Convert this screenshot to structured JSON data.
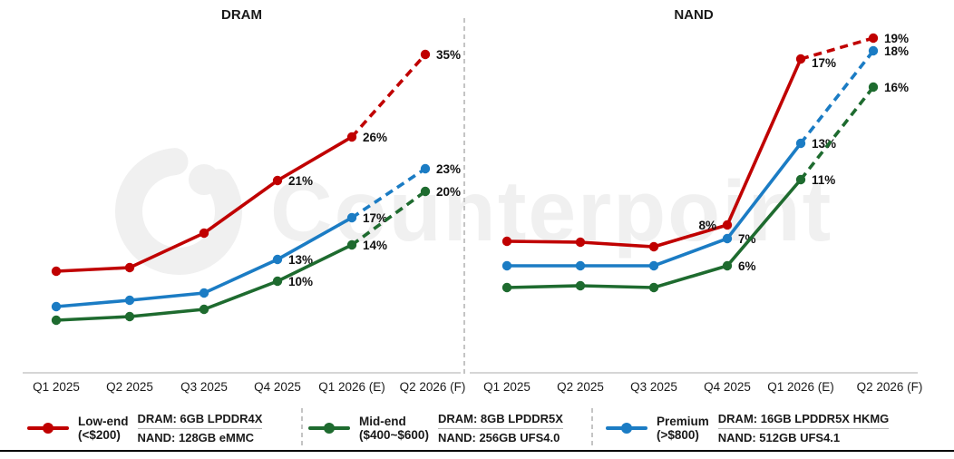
{
  "chart_data": [
    {
      "type": "line",
      "title": "DRAM",
      "categories": [
        "Q1 2025",
        "Q2 2025",
        "Q3 2025",
        "Q4 2025",
        "Q1 2026 (E)",
        "Q2 2026 (F)"
      ],
      "ylabel": "",
      "unit": "%",
      "forecast_from_index": 4,
      "legend_position": "bottom",
      "grid": false,
      "series": [
        {
          "name": "Low-end",
          "color": "#C00000",
          "values": [
            11,
            11,
            15,
            21,
            26,
            35
          ],
          "labels": [
            null,
            null,
            null,
            "21%",
            "26%",
            "35%"
          ],
          "py": [
            299,
            295,
            257,
            199,
            151,
            60
          ]
        },
        {
          "name": "Premium",
          "color": "#1B7CC4",
          "values": [
            8,
            9,
            9,
            13,
            17,
            23
          ],
          "labels": [
            null,
            null,
            null,
            "13%",
            "17%",
            "23%"
          ],
          "py": [
            338,
            331,
            323,
            286,
            240,
            186
          ]
        },
        {
          "name": "Mid-end",
          "color": "#1E6B2F",
          "values": [
            6,
            6,
            7,
            10,
            14,
            20
          ],
          "labels": [
            null,
            null,
            null,
            "10%",
            "14%",
            "20%"
          ],
          "py": [
            353,
            349,
            341,
            310,
            270,
            211
          ]
        }
      ],
      "layout": {
        "px": [
          62,
          143,
          225,
          306,
          388,
          469
        ],
        "tick_dx": [
          0,
          0,
          0,
          0,
          0,
          8
        ],
        "axis": {
          "y": 411,
          "x1": 25,
          "x2": 508
        }
      }
    },
    {
      "type": "line",
      "title": "NAND",
      "categories": [
        "Q1 2025",
        "Q2 2025",
        "Q3 2025",
        "Q4 2025",
        "Q1 2026 (E)",
        "Q2 2026 (F)"
      ],
      "ylabel": "",
      "unit": "%",
      "forecast_from_index": 4,
      "legend_position": "bottom",
      "grid": false,
      "series": [
        {
          "name": "Low-end",
          "color": "#C00000",
          "values": [
            7,
            7,
            7,
            8,
            17,
            19
          ],
          "labels": [
            null,
            null,
            null,
            {
              "t": "8%",
              "side": "left"
            },
            {
              "t": "17%",
              "dy": 9
            },
            "19%"
          ],
          "py": [
            266,
            267,
            272,
            248,
            65,
            42
          ]
        },
        {
          "name": "Premium",
          "color": "#1B7CC4",
          "values": [
            6,
            6,
            6,
            7,
            13,
            18
          ],
          "labels": [
            null,
            null,
            null,
            "7%",
            "13%",
            "18%"
          ],
          "py": [
            293,
            293,
            293,
            263,
            158,
            56
          ]
        },
        {
          "name": "Mid-end",
          "color": "#1E6B2F",
          "values": [
            5,
            5,
            5,
            6,
            11,
            16
          ],
          "labels": [
            null,
            null,
            null,
            "6%",
            "11%",
            "16%"
          ],
          "py": [
            317,
            315,
            317,
            293,
            198,
            96
          ]
        }
      ],
      "layout": {
        "px": [
          559,
          640,
          721,
          802,
          883,
          963
        ],
        "tick_dx": [
          0,
          0,
          0,
          0,
          0,
          18
        ],
        "axis": {
          "y": 411,
          "x1": 518,
          "x2": 1012
        }
      }
    }
  ],
  "legend": {
    "items": [
      {
        "name": "Low-end",
        "range": "(<$200)",
        "color": "#C00000",
        "dram_spec": "DRAM: 6GB LPDDR4X",
        "nand_spec": "NAND: 128GB eMMC"
      },
      {
        "name": "Mid-end",
        "range": "($400~$600)",
        "color": "#1E6B2F",
        "dram_spec": "DRAM: 8GB LPDDR5X",
        "nand_spec": "NAND: 256GB UFS4.0"
      },
      {
        "name": "Premium",
        "range": "(>$800)",
        "color": "#1B7CC4",
        "dram_spec": "DRAM: 16GB LPDDR5X HKMG",
        "nand_spec": "NAND: 512GB UFS4.1"
      }
    ]
  },
  "watermark": {
    "text": "Counterpoint"
  },
  "colors": {
    "axis_line": "#c9c9c9",
    "divider": "#c4c4c4",
    "label_text": "#111111",
    "bottom_rule": "#000000"
  }
}
